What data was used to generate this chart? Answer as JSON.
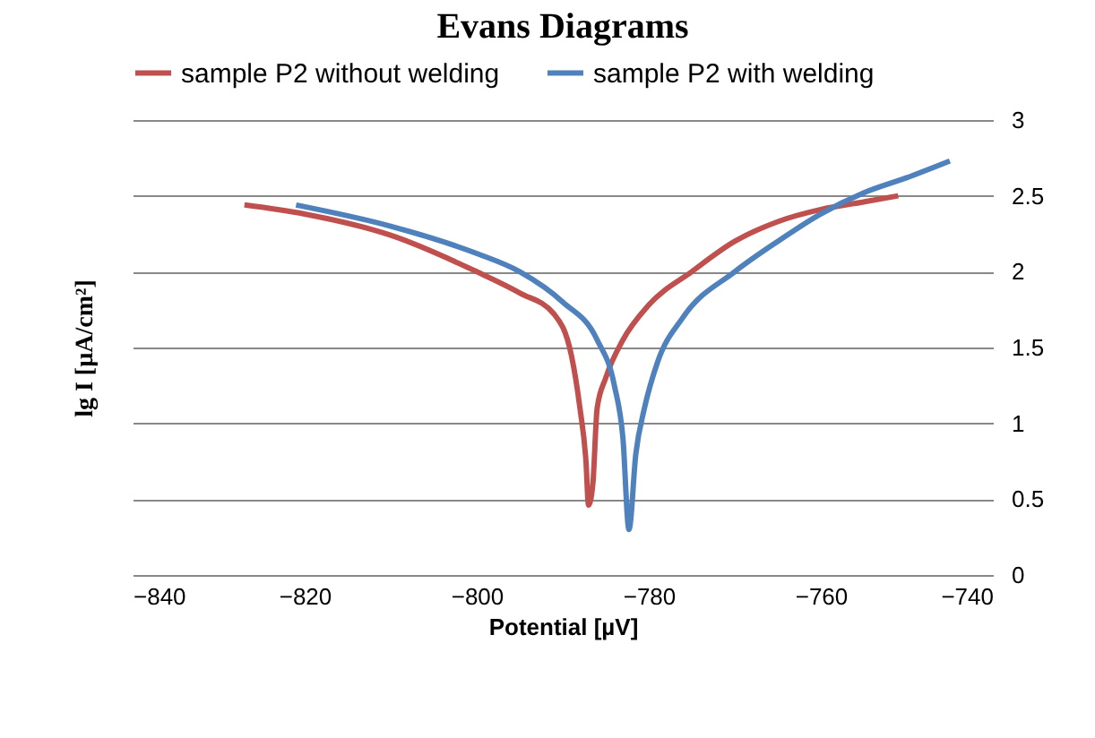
{
  "chart_data": {
    "type": "line",
    "title": "Evans Diagrams",
    "xlabel": "Potential [µV]",
    "ylabel": "lg I [µA/cm²]",
    "xlim": [
      -840,
      -740
    ],
    "xticks": [
      -840,
      -820,
      -800,
      -780,
      -760,
      -740
    ],
    "ylim": [
      0,
      3
    ],
    "yticks": [
      0,
      0.5,
      1,
      1.5,
      2,
      2.5,
      3
    ],
    "grid": "y",
    "legend": "top",
    "line_style": "solid",
    "series": [
      {
        "name": "sample P2 without welding",
        "color": "#c0504d",
        "x": [
          -827,
          -820,
          -810,
          -800,
          -795,
          -791,
          -789,
          -788,
          -787.3,
          -787,
          -786.5,
          -786,
          -785,
          -783,
          -780,
          -775,
          -770,
          -765,
          -760,
          -755,
          -751
        ],
        "values": [
          2.44,
          2.38,
          2.24,
          2.0,
          1.86,
          1.72,
          1.45,
          1.1,
          0.75,
          0.46,
          0.6,
          1.1,
          1.3,
          1.55,
          1.78,
          2.0,
          2.2,
          2.33,
          2.41,
          2.46,
          2.5
        ]
      },
      {
        "name": "sample P2 with welding",
        "color": "#4f81bd",
        "x": [
          -821,
          -810,
          -800,
          -795,
          -790,
          -786,
          -784,
          -783,
          -782.3,
          -781.5,
          -780.5,
          -779,
          -776,
          -770,
          -765,
          -760,
          -755,
          -750,
          -745
        ],
        "values": [
          2.44,
          2.3,
          2.12,
          2.0,
          1.8,
          1.55,
          1.25,
          0.9,
          0.3,
          0.8,
          1.1,
          1.4,
          1.7,
          2.0,
          2.2,
          2.38,
          2.52,
          2.62,
          2.73
        ]
      }
    ]
  }
}
